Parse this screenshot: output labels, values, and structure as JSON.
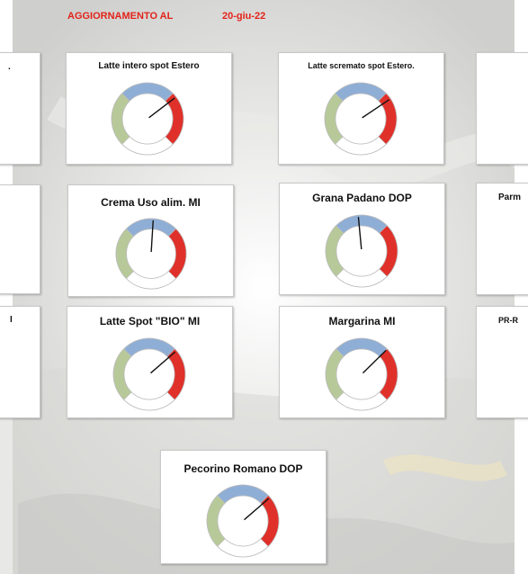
{
  "header": {
    "label": "AGGIORNAMENTO AL",
    "date": "20-giu-22"
  },
  "cards": [
    {
      "title": "",
      "partial_title": ".",
      "needle_pct": null
    },
    {
      "title": "Latte intero spot Estero",
      "needle_pct": 80
    },
    {
      "title": "Latte scremato spot Estero.",
      "needle_pct": 82
    },
    {
      "title": "",
      "needle_pct": null
    },
    {
      "title": "",
      "needle_pct": null
    },
    {
      "title": "Crema Uso alim. MI",
      "needle_pct": 52
    },
    {
      "title": "Grana Padano DOP",
      "needle_pct": 48
    },
    {
      "title": "Parm",
      "needle_pct": null
    },
    {
      "title": "I",
      "needle_pct": null
    },
    {
      "title": "Latte Spot \"BIO\" MI",
      "needle_pct": 78
    },
    {
      "title": "Margarina MI",
      "needle_pct": 76
    },
    {
      "title": "PR-R",
      "needle_pct": null
    },
    {
      "title": "Pecorino Romano DOP",
      "needle_pct": 78
    }
  ],
  "colors": {
    "header": "#e2231a",
    "gauge_low": "#b7c999",
    "gauge_mid": "#8faed6",
    "gauge_high": "#e0302a",
    "needle": "#111111"
  }
}
